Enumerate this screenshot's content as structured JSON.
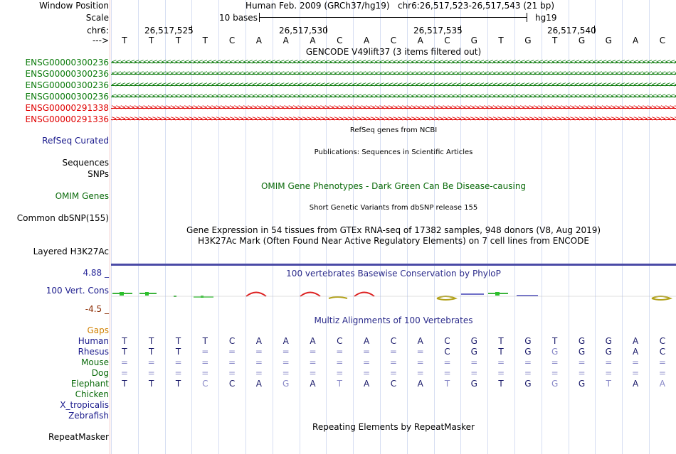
{
  "header": {
    "window_position_label": "Window Position",
    "assembly": "Human Feb. 2009 (GRCh37/hg19)",
    "position": "chr6:26,517,523-26,517,543 (21 bp)",
    "scale_label": "Scale",
    "scale_text": "10 bases",
    "scale_db": "hg19",
    "chrom_label": "chr6:",
    "strand_label": "--->",
    "coords": [
      "26,517,525",
      "26,517,530",
      "26,517,535",
      "26,517,540"
    ]
  },
  "sequence": [
    "T",
    "T",
    "T",
    "T",
    "C",
    "A",
    "A",
    "A",
    "C",
    "A",
    "C",
    "A",
    "C",
    "G",
    "T",
    "G",
    "T",
    "G",
    "G",
    "A",
    "C"
  ],
  "gencode": {
    "title": "GENCODE V49lift37 (3 items filtered out)",
    "genes": [
      {
        "name": "ENSG00000300236",
        "strand": "-",
        "color": "#0a7a0a"
      },
      {
        "name": "ENSG00000300236",
        "strand": "-",
        "color": "#0a7a0a"
      },
      {
        "name": "ENSG00000300236",
        "strand": "-",
        "color": "#0a7a0a"
      },
      {
        "name": "ENSG00000300236",
        "strand": "-",
        "color": "#0a7a0a"
      },
      {
        "name": "ENSG00000291338",
        "strand": "+",
        "color": "#e00000"
      },
      {
        "name": "ENSG00000291336",
        "strand": "+",
        "color": "#e00000"
      }
    ]
  },
  "tracks": {
    "refseq_title": "RefSeq genes from NCBI",
    "refseq_label": "RefSeq Curated",
    "pubs_title": "Publications: Sequences in Scientific Articles",
    "sequences_label": "Sequences",
    "snps_label": "SNPs",
    "omim_title": "OMIM Gene Phenotypes - Dark Green Can Be Disease-causing",
    "omim_label": "OMIM Genes",
    "dbsnp_title": "Short Genetic Variants from dbSNP release 155",
    "dbsnp_label": "Common dbSNP(155)",
    "gtex_title": "Gene Expression in 54 tissues from GTEx RNA-seq of 17382 samples, 948 donors (V8, Aug 2019)",
    "h3k27_title": "H3K27Ac Mark (Often Found Near Active Regulatory Elements) on 7 cell lines from ENCODE",
    "h3k27_label": "Layered H3K27Ac",
    "phylop_title": "100 vertebrates Basewise Conservation by PhyloP",
    "cons_label": "100 Vert. Cons",
    "cons_max": "4.88 _",
    "cons_min": "-4.5 _",
    "multiz_title": "Multiz Alignments of 100 Vertebrates",
    "repeat_title": "Repeating Elements by RepeatMasker",
    "repeat_label": "RepeatMasker"
  },
  "alignment": {
    "gaps_label": "Gaps",
    "species": [
      {
        "name": "Human",
        "seq": [
          "T",
          "T",
          "T",
          "T",
          "C",
          "A",
          "A",
          "A",
          "C",
          "A",
          "C",
          "A",
          "C",
          "G",
          "T",
          "G",
          "T",
          "G",
          "G",
          "A",
          "C"
        ]
      },
      {
        "name": "Rhesus",
        "seq": [
          "T",
          "T",
          "T",
          "=",
          "=",
          "=",
          "=",
          "=",
          "=",
          "=",
          "=",
          "=",
          "C",
          "G",
          "T",
          "G",
          "G",
          "G",
          "G",
          "A",
          "C"
        ]
      },
      {
        "name": "Mouse",
        "seq": [
          "=",
          "=",
          "=",
          "=",
          "=",
          "=",
          "=",
          "=",
          "=",
          "=",
          "=",
          "=",
          "=",
          "=",
          "=",
          "=",
          "=",
          "=",
          "=",
          "=",
          "="
        ]
      },
      {
        "name": "Dog",
        "seq": [
          "=",
          "=",
          "=",
          "=",
          "=",
          "=",
          "=",
          "=",
          "=",
          "=",
          "=",
          "=",
          "=",
          "=",
          "=",
          "=",
          "=",
          "=",
          "=",
          "=",
          "="
        ]
      },
      {
        "name": "Elephant",
        "seq": [
          "T",
          "T",
          "T",
          "C",
          "C",
          "A",
          "G",
          "A",
          "T",
          "A",
          "C",
          "A",
          "T",
          "G",
          "T",
          "G",
          "G",
          "G",
          "T",
          "A",
          "A"
        ]
      },
      {
        "name": "Chicken",
        "seq": []
      },
      {
        "name": "X_tropicalis",
        "seq": []
      },
      {
        "name": "Zebrafish",
        "seq": []
      }
    ],
    "dim": {
      "Rhesus": [
        3,
        4,
        5,
        6,
        7,
        8,
        9,
        10,
        11,
        16
      ],
      "Mouse": [
        0,
        1,
        2,
        3,
        4,
        5,
        6,
        7,
        8,
        9,
        10,
        11,
        12,
        13,
        14,
        15,
        16,
        17,
        18,
        19,
        20
      ],
      "Dog": [
        0,
        1,
        2,
        3,
        4,
        5,
        6,
        7,
        8,
        9,
        10,
        11,
        12,
        13,
        14,
        15,
        16,
        17,
        18,
        19,
        20
      ],
      "Elephant": [
        3,
        6,
        8,
        12,
        16,
        18,
        20
      ]
    }
  },
  "colors": {
    "label_blue": "#1a1a8c",
    "track_green": "#0a6a0a",
    "gaps_orange": "#d08000",
    "cons_max": "#2a2a9a",
    "cons_min": "#8a2a00",
    "seq_dim": "#8a8ac8"
  }
}
